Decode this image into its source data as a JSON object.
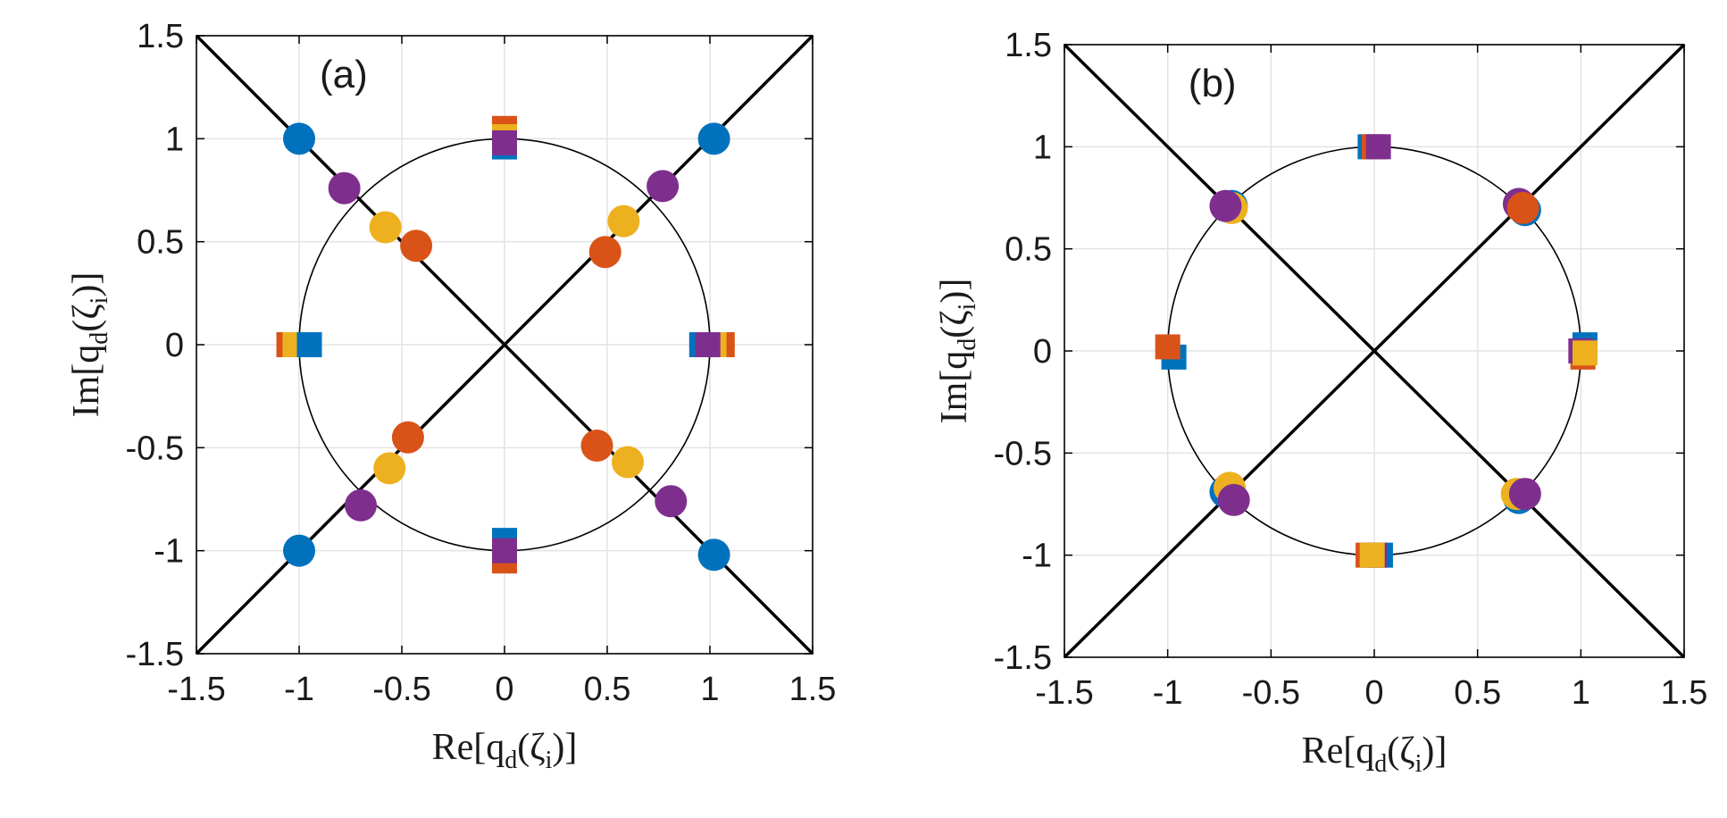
{
  "colors": {
    "blue": "#0072BD",
    "orange": "#D95319",
    "yellow": "#EDB120",
    "purple": "#7E2F8E",
    "grid": "#e3e3e3",
    "axis": "#000000"
  },
  "chart_data": [
    {
      "type": "scatter",
      "panel_label": "(a)",
      "xlabel": {
        "pre": "Re[q",
        "sub1": "d",
        "mid": "(ζ",
        "sub2": "i",
        "post": ")]"
      },
      "ylabel": {
        "pre": "Im[q",
        "sub1": "d",
        "mid": "(ζ",
        "sub2": "i",
        "post": ")]"
      },
      "xlim": [
        -1.5,
        1.5
      ],
      "ylim": [
        -1.5,
        1.5
      ],
      "xticks": [
        -1.5,
        -1,
        -0.5,
        0,
        0.5,
        1,
        1.5
      ],
      "yticks": [
        -1.5,
        -1,
        -0.5,
        0,
        0.5,
        1,
        1.5
      ],
      "xtick_labels": [
        "-1.5",
        "-1",
        "-0.5",
        "0",
        "0.5",
        "1",
        "1.5"
      ],
      "ytick_labels": [
        "-1.5",
        "-1",
        "-0.5",
        "0",
        "0.5",
        "1",
        "1.5"
      ],
      "grid": true,
      "unit_circle": true,
      "diagonals": true,
      "series": [
        {
          "name": "blue",
          "color": "blue",
          "marker": "circle",
          "points": [
            [
              -1.0,
              1.0
            ],
            [
              1.02,
              1.0
            ],
            [
              -1.0,
              -1.0
            ],
            [
              1.02,
              -1.02
            ]
          ]
        },
        {
          "name": "purple",
          "color": "purple",
          "marker": "circle",
          "points": [
            [
              -0.78,
              0.76
            ],
            [
              0.77,
              0.77
            ],
            [
              -0.7,
              -0.78
            ],
            [
              0.81,
              -0.76
            ]
          ]
        },
        {
          "name": "yellow",
          "color": "yellow",
          "marker": "circle",
          "points": [
            [
              -0.58,
              0.57
            ],
            [
              0.58,
              0.6
            ],
            [
              -0.56,
              -0.6
            ],
            [
              0.6,
              -0.57
            ]
          ]
        },
        {
          "name": "orange",
          "color": "orange",
          "marker": "circle",
          "points": [
            [
              -0.43,
              0.48
            ],
            [
              0.49,
              0.45
            ],
            [
              -0.47,
              -0.45
            ],
            [
              0.45,
              -0.49
            ]
          ]
        },
        {
          "name": "orange",
          "color": "orange",
          "marker": "square",
          "points": [
            [
              0.0,
              1.05
            ],
            [
              -1.05,
              0.0
            ],
            [
              1.06,
              0.0
            ],
            [
              0.0,
              -1.05
            ]
          ]
        },
        {
          "name": "yellow",
          "color": "yellow",
          "marker": "square",
          "points": [
            [
              0.0,
              1.01
            ],
            [
              1.02,
              0.0
            ],
            [
              -1.02,
              0.0
            ],
            [
              0.0,
              -0.99
            ]
          ]
        },
        {
          "name": "blue",
          "color": "blue",
          "marker": "square",
          "points": [
            [
              0.0,
              0.96
            ],
            [
              -0.95,
              0.0
            ],
            [
              0.96,
              0.0
            ],
            [
              0.0,
              -0.95
            ]
          ]
        },
        {
          "name": "purple",
          "color": "purple",
          "marker": "square",
          "points": [
            [
              0.0,
              0.98
            ],
            [
              0.99,
              0.0
            ],
            [
              0.0,
              -1.0
            ]
          ]
        }
      ]
    },
    {
      "type": "scatter",
      "panel_label": "(b)",
      "xlabel": {
        "pre": "Re[q",
        "sub1": "d",
        "mid": "(ζ",
        "sub2": "i",
        "post": ")]"
      },
      "ylabel": {
        "pre": "Im[q",
        "sub1": "d",
        "mid": "(ζ",
        "sub2": "i",
        "post": ")]"
      },
      "xlim": [
        -1.5,
        1.5
      ],
      "ylim": [
        -1.5,
        1.5
      ],
      "xticks": [
        -1.5,
        -1,
        -0.5,
        0,
        0.5,
        1,
        1.5
      ],
      "yticks": [
        -1.5,
        -1,
        -0.5,
        0,
        0.5,
        1,
        1.5
      ],
      "xtick_labels": [
        "-1.5",
        "-1",
        "-0.5",
        "0",
        "0.5",
        "1",
        "1.5"
      ],
      "ytick_labels": [
        "-1.5",
        "-1",
        "-0.5",
        "0",
        "0.5",
        "1",
        "1.5"
      ],
      "grid": true,
      "unit_circle": true,
      "diagonals": true,
      "series": [
        {
          "name": "blue",
          "color": "blue",
          "marker": "circle",
          "points": [
            [
              -0.69,
              0.71
            ],
            [
              0.73,
              0.69
            ],
            [
              -0.72,
              -0.69
            ],
            [
              0.7,
              -0.72
            ]
          ]
        },
        {
          "name": "yellow",
          "color": "yellow",
          "marker": "circle",
          "points": [
            [
              -0.69,
              0.7
            ],
            [
              0.71,
              0.71
            ],
            [
              -0.7,
              -0.67
            ],
            [
              0.69,
              -0.7
            ]
          ]
        },
        {
          "name": "purple",
          "color": "purple",
          "marker": "circle",
          "points": [
            [
              -0.72,
              0.71
            ],
            [
              0.7,
              0.72
            ],
            [
              -0.68,
              -0.73
            ],
            [
              0.73,
              -0.7
            ]
          ]
        },
        {
          "name": "orange",
          "color": "orange",
          "marker": "circle",
          "points": [
            [
              0.72,
              0.7
            ]
          ]
        },
        {
          "name": "blue",
          "color": "blue",
          "marker": "square",
          "points": [
            [
              -0.97,
              -0.03
            ],
            [
              1.02,
              0.03
            ],
            [
              -0.02,
              1.0
            ],
            [
              0.03,
              -1.0
            ]
          ]
        },
        {
          "name": "orange",
          "color": "orange",
          "marker": "square",
          "points": [
            [
              -1.0,
              0.02
            ],
            [
              1.01,
              -0.03
            ],
            [
              0.0,
              1.0
            ],
            [
              -0.03,
              -1.0
            ]
          ]
        },
        {
          "name": "purple",
          "color": "purple",
          "marker": "square",
          "points": [
            [
              0.02,
              1.0
            ],
            [
              1.0,
              0.0
            ],
            [
              0.0,
              -1.0
            ]
          ]
        },
        {
          "name": "yellow",
          "color": "yellow",
          "marker": "square",
          "points": [
            [
              1.02,
              -0.01
            ],
            [
              -0.01,
              -1.0
            ]
          ]
        }
      ]
    }
  ]
}
